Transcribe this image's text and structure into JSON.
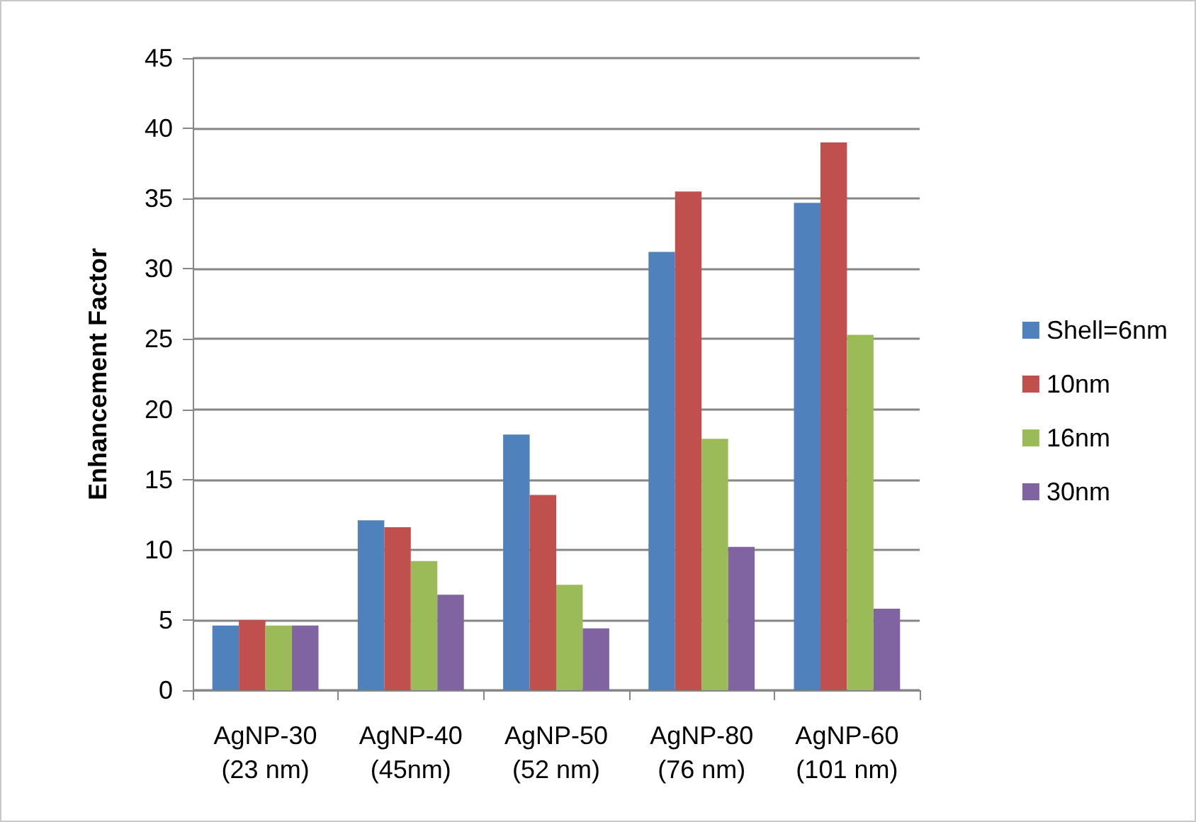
{
  "chart_data": {
    "type": "bar",
    "ylabel": "Enhancement Factor",
    "categories": [
      "AgNP-30\n(23 nm)",
      "AgNP-40\n(45nm)",
      "AgNP-50\n(52 nm)",
      "AgNP-80\n(76 nm)",
      "AgNP-60\n(101 nm)"
    ],
    "series": [
      {
        "name": "Shell=6nm",
        "color": "#4f81bd",
        "values": [
          4.6,
          12.1,
          18.2,
          31.2,
          34.7
        ]
      },
      {
        "name": "10nm",
        "color": "#c0504d",
        "values": [
          5.0,
          11.6,
          13.9,
          35.5,
          39.0
        ]
      },
      {
        "name": "16nm",
        "color": "#9bbb59",
        "values": [
          4.6,
          9.2,
          7.5,
          17.9,
          25.3
        ]
      },
      {
        "name": "30nm",
        "color": "#8064a2",
        "values": [
          4.6,
          6.8,
          4.4,
          10.2,
          5.8
        ]
      }
    ],
    "ylim": [
      0,
      45
    ],
    "yticks": [
      0,
      5,
      10,
      15,
      20,
      25,
      30,
      35,
      40,
      45
    ],
    "grid": "y",
    "legend": "right"
  }
}
